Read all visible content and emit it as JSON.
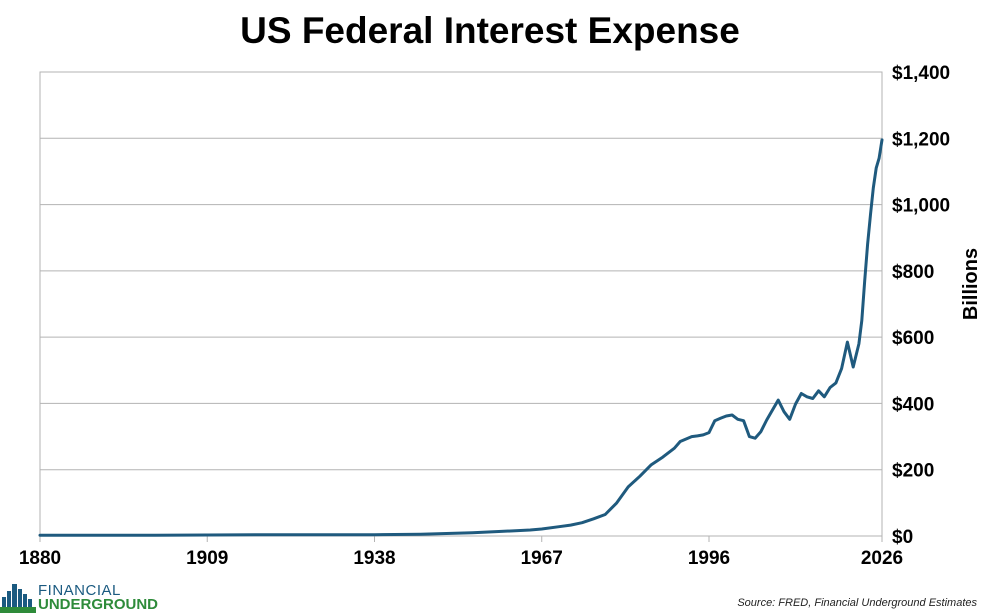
{
  "chart_data": {
    "type": "line",
    "title": "US Federal Interest Expense",
    "ylabel": "Billions",
    "xlabel": "",
    "xlim": [
      1880,
      2026
    ],
    "ylim": [
      0,
      1400
    ],
    "x_ticks": [
      1880,
      1909,
      1938,
      1967,
      1996,
      2026
    ],
    "x_tick_labels": [
      "1880",
      "1909",
      "1938",
      "1967",
      "1996",
      "2026"
    ],
    "y_ticks": [
      0,
      200,
      400,
      600,
      800,
      1000,
      1200,
      1400
    ],
    "y_tick_labels": [
      "$0",
      "$200",
      "$400",
      "$600",
      "$800",
      "$1,000",
      "$1,200",
      "$1,400"
    ],
    "grid": true,
    "series": [
      {
        "name": "US Federal Interest Expense",
        "color": "#1f5a7e",
        "x": [
          1880,
          1900,
          1909,
          1920,
          1938,
          1946,
          1952,
          1955,
          1960,
          1965,
          1967,
          1970,
          1972,
          1974,
          1976,
          1978,
          1980,
          1982,
          1984,
          1986,
          1988,
          1990,
          1991,
          1993,
          1994,
          1995,
          1996,
          1997,
          1998,
          1999,
          2000,
          2001,
          2002,
          2003,
          2004,
          2005,
          2006,
          2007,
          2008,
          2009,
          2010,
          2011,
          2012,
          2013,
          2014,
          2015,
          2016,
          2017,
          2018,
          2019,
          2020,
          2021,
          2022,
          2022.5,
          2023,
          2023.5,
          2024,
          2024.5,
          2025,
          2025.5,
          2026
        ],
        "values": [
          2,
          2,
          3,
          4,
          4,
          5,
          8,
          10,
          14,
          18,
          21,
          28,
          33,
          40,
          52,
          65,
          100,
          148,
          180,
          215,
          238,
          265,
          285,
          300,
          302,
          305,
          312,
          348,
          355,
          362,
          365,
          352,
          348,
          300,
          295,
          315,
          350,
          380,
          410,
          375,
          352,
          398,
          430,
          420,
          415,
          438,
          420,
          448,
          462,
          505,
          585,
          510,
          580,
          650,
          770,
          880,
          970,
          1050,
          1110,
          1140,
          1195
        ]
      }
    ]
  },
  "source": "Source: FRED, Financial Underground Estimates",
  "logo": {
    "line1": "FINANCIAL",
    "line2": "UNDERGROUND"
  }
}
